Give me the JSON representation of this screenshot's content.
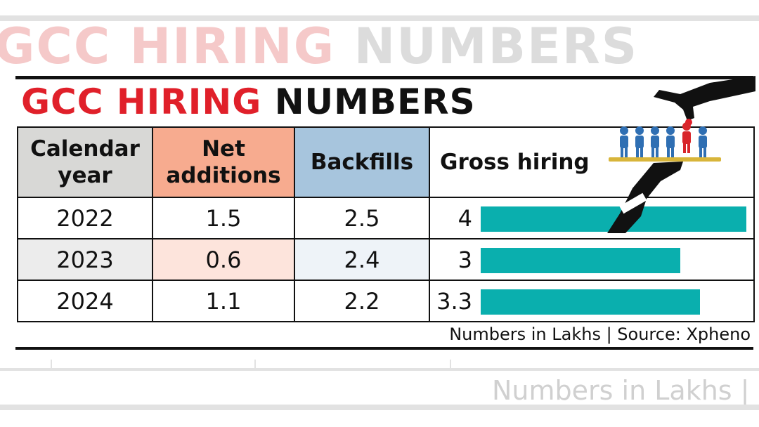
{
  "title": {
    "part1": "GCC HIRING",
    "part2": "NUMBERS"
  },
  "table": {
    "headers": {
      "year": "Calendar year",
      "net": "Net additions",
      "backfills": "Backfills",
      "gross": "Gross hiring"
    },
    "rows": [
      {
        "year": "2022",
        "net": "1.5",
        "backfills": "2.5",
        "gross": "4"
      },
      {
        "year": "2023",
        "net": "0.6",
        "backfills": "2.4",
        "gross": "3"
      },
      {
        "year": "2024",
        "net": "1.1",
        "backfills": "2.2",
        "gross": "3.3"
      }
    ]
  },
  "source": "Numbers in Lakhs | Source: Xpheno",
  "ghost": {
    "source": "Numbers in Lakhs | So"
  },
  "colors": {
    "title_red": "#e0202a",
    "net_header": "#f7ab8f",
    "backfills_header": "#a7c5dd",
    "year_header": "#d8d8d6",
    "bar": "#0aafae"
  },
  "chart_data": {
    "type": "bar",
    "categories": [
      "2022",
      "2023",
      "2024"
    ],
    "series": [
      {
        "name": "Net additions",
        "values": [
          1.5,
          0.6,
          1.1
        ]
      },
      {
        "name": "Backfills",
        "values": [
          2.5,
          2.4,
          2.2
        ]
      },
      {
        "name": "Gross hiring",
        "values": [
          4,
          3,
          3.3
        ]
      }
    ],
    "title": "GCC HIRING NUMBERS",
    "xlabel": "Calendar year",
    "ylabel": "",
    "unit": "Lakhs",
    "xlim": [
      0,
      4
    ]
  }
}
